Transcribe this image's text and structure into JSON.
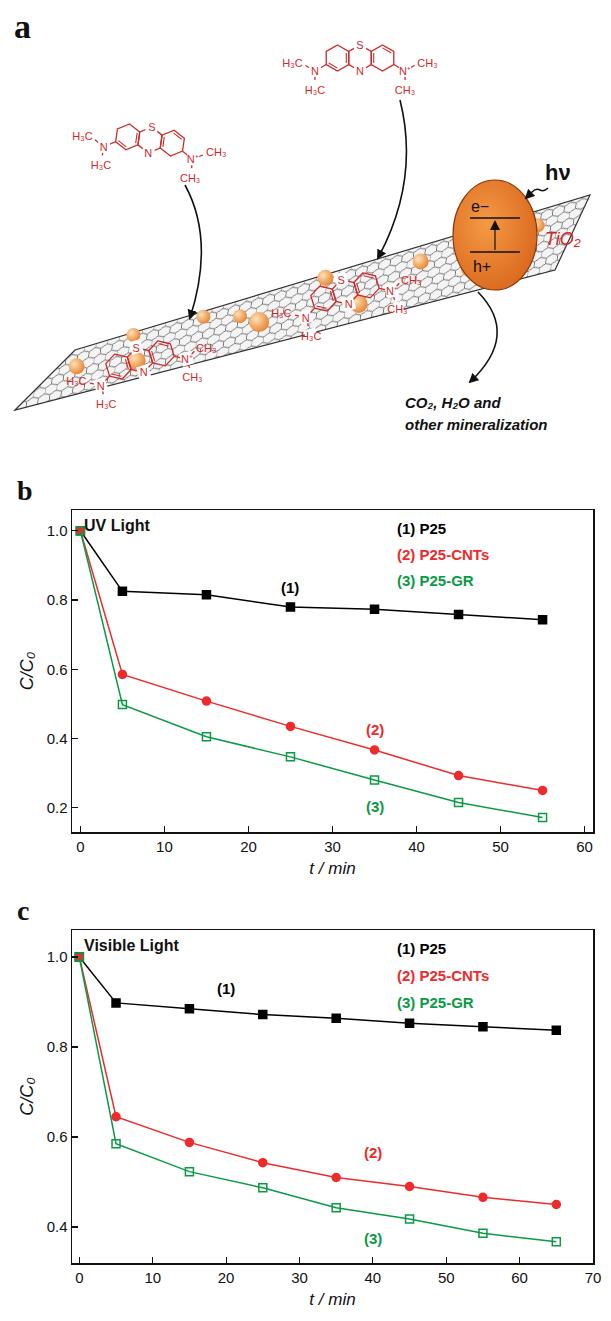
{
  "diagram": {
    "label": "a",
    "photon": "hν",
    "electron": "e−",
    "hole": "h+",
    "semiconductor": "TiO₂",
    "products": [
      "CO₂, H₂O and",
      "other mineralization"
    ],
    "molecule": {
      "amine": "N",
      "methyls_left": [
        "H₃C",
        "H₃C"
      ],
      "ring_atoms": [
        "S",
        "N"
      ],
      "cation": "N⁺",
      "methyls_right": [
        "CH₃",
        "CH₃"
      ]
    }
  },
  "chart_data": [
    {
      "label": "b",
      "type": "line",
      "title": "UV Light",
      "x_label": "t / min",
      "y_label": "C/C₀",
      "xlim": [
        -1,
        61
      ],
      "xticks": [
        0,
        10,
        20,
        30,
        40,
        50,
        60
      ],
      "ylim": [
        0.13,
        1.06
      ],
      "yticks": [
        0.2,
        0.4,
        0.6,
        0.8,
        {
          "value": 1,
          "label": "1.0"
        }
      ],
      "grid": false,
      "legend": "upper right",
      "x": [
        0,
        5,
        15,
        25,
        35,
        45,
        55
      ],
      "series": [
        {
          "name": "(1) P25",
          "color": "#000000",
          "marker": "square",
          "values": [
            1.0,
            0.825,
            0.815,
            0.78,
            0.773,
            0.758,
            0.743
          ]
        },
        {
          "name": "(2) P25-CNTs",
          "color": "#ee2a2a",
          "marker": "circle",
          "values": [
            1.0,
            0.585,
            0.508,
            0.435,
            0.367,
            0.293,
            0.25
          ]
        },
        {
          "name": "(3) P25-GR",
          "color": "#0a9a45",
          "marker": "square-open",
          "values": [
            1.0,
            0.498,
            0.405,
            0.347,
            0.28,
            0.215,
            0.172
          ]
        }
      ],
      "annotations": [
        {
          "text": "(1)",
          "x": 25,
          "y": 0.835,
          "color": "#000000"
        },
        {
          "text": "(2)",
          "x": 35,
          "y": 0.425,
          "color": "#ee2a2a"
        },
        {
          "text": "(3)",
          "x": 35,
          "y": 0.205,
          "color": "#0a9a45"
        }
      ]
    },
    {
      "label": "c",
      "type": "line",
      "title": "Visible Light",
      "x_label": "t / min",
      "y_label": "C/C₀",
      "xlim": [
        -1,
        70
      ],
      "xticks": [
        0,
        10,
        20,
        30,
        40,
        50,
        60,
        70
      ],
      "ylim": [
        0.32,
        1.06
      ],
      "yticks": [
        0.4,
        0.6,
        0.8,
        {
          "value": 1,
          "label": "1.0"
        }
      ],
      "grid": false,
      "legend": "upper right",
      "x": [
        0,
        5,
        15,
        25,
        35,
        45,
        55,
        65
      ],
      "series": [
        {
          "name": "(1) P25",
          "color": "#000000",
          "marker": "square",
          "values": [
            1.0,
            0.898,
            0.885,
            0.872,
            0.864,
            0.853,
            0.845,
            0.837
          ]
        },
        {
          "name": "(2) P25-CNTs",
          "color": "#ee2a2a",
          "marker": "circle",
          "values": [
            1.0,
            0.645,
            0.588,
            0.543,
            0.51,
            0.49,
            0.466,
            0.45
          ]
        },
        {
          "name": "(3) P25-GR",
          "color": "#0a9a45",
          "marker": "square-open",
          "values": [
            1.0,
            0.585,
            0.523,
            0.487,
            0.443,
            0.418,
            0.386,
            0.367
          ]
        }
      ],
      "annotations": [
        {
          "text": "(1)",
          "x": 20,
          "y": 0.93,
          "color": "#000000"
        },
        {
          "text": "(2)",
          "x": 40,
          "y": 0.565,
          "color": "#ee2a2a"
        },
        {
          "text": "(3)",
          "x": 40,
          "y": 0.375,
          "color": "#0a9a45"
        }
      ]
    }
  ]
}
